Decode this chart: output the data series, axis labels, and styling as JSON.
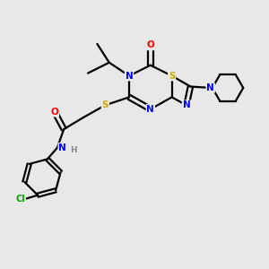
{
  "bg_color": "#e8e8e8",
  "atom_colors": {
    "C": "#000000",
    "N": "#0000ff",
    "O": "#ff0000",
    "S": "#ccaa00",
    "Cl": "#00aa00",
    "H": "#888888"
  },
  "bond_color": "#000000",
  "bond_width": 1.6,
  "figsize": [
    3.0,
    3.0
  ],
  "dpi": 100,
  "xlim": [
    0,
    10
  ],
  "ylim": [
    0,
    10
  ]
}
